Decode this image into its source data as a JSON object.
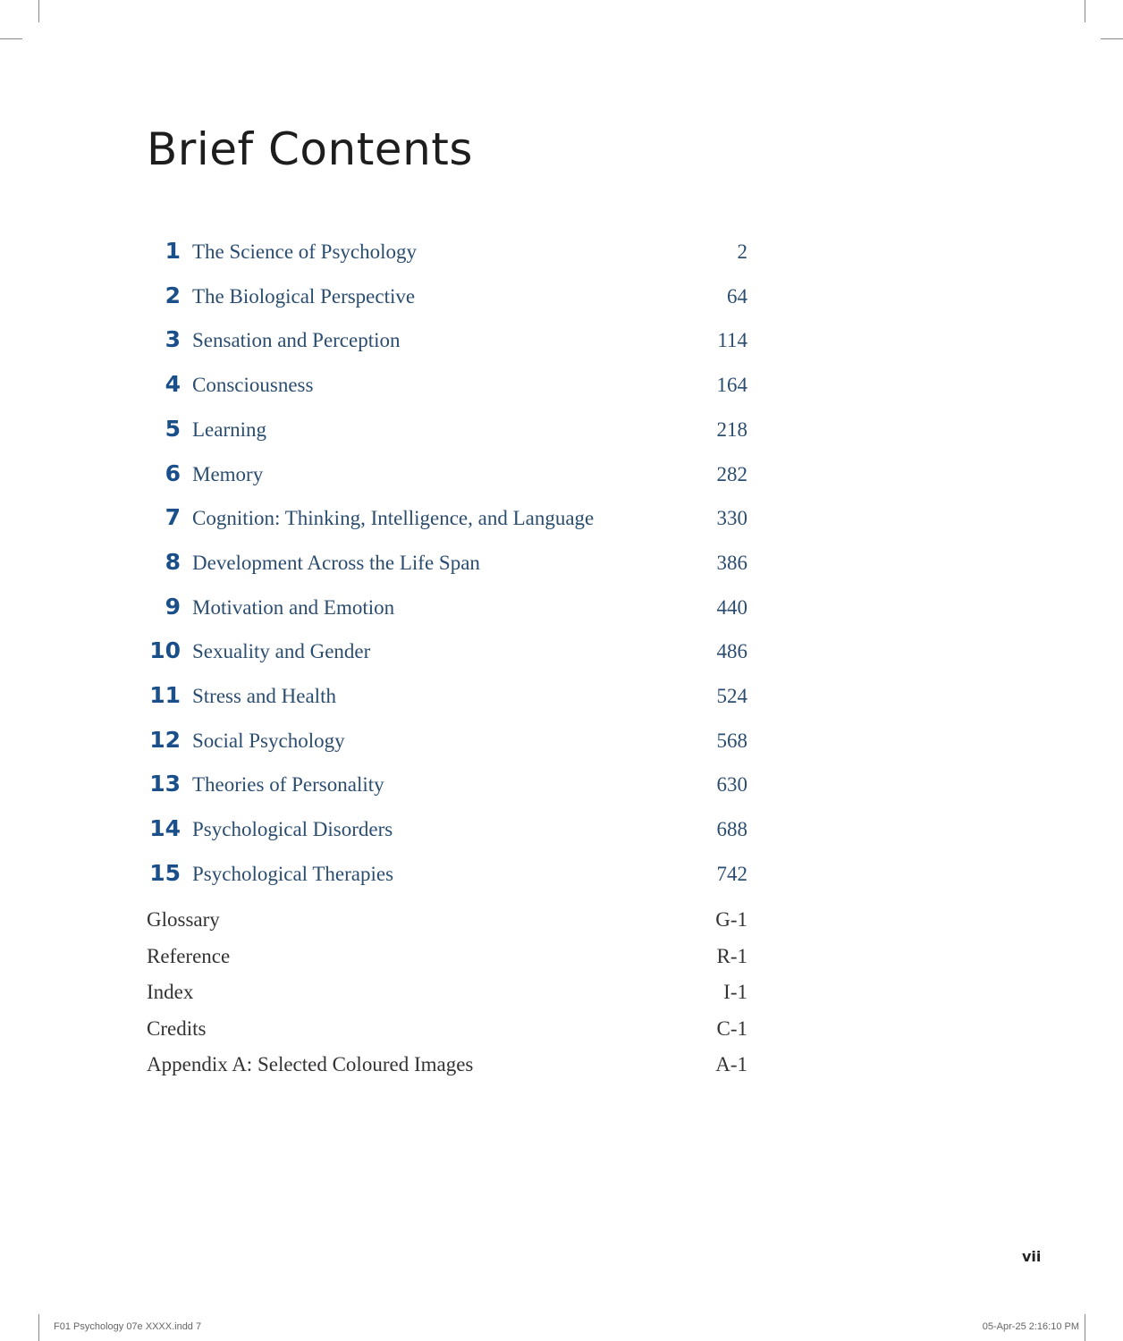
{
  "title": "Brief Contents",
  "chapters": [
    {
      "number": "1",
      "title": "The Science of Psychology",
      "page": "2"
    },
    {
      "number": "2",
      "title": "The Biological Perspective",
      "page": "64"
    },
    {
      "number": "3",
      "title": "Sensation and Perception",
      "page": "114"
    },
    {
      "number": "4",
      "title": "Consciousness",
      "page": "164"
    },
    {
      "number": "5",
      "title": "Learning",
      "page": "218"
    },
    {
      "number": "6",
      "title": "Memory",
      "page": "282"
    },
    {
      "number": "7",
      "title": "Cognition: Thinking, Intelligence, and Language",
      "page": "330"
    },
    {
      "number": "8",
      "title": "Development Across the Life Span",
      "page": "386"
    },
    {
      "number": "9",
      "title": "Motivation and Emotion",
      "page": "440"
    },
    {
      "number": "10",
      "title": "Sexuality and Gender",
      "page": "486"
    },
    {
      "number": "11",
      "title": "Stress and Health",
      "page": "524"
    },
    {
      "number": "12",
      "title": "Social Psychology",
      "page": "568"
    },
    {
      "number": "13",
      "title": "Theories of Personality",
      "page": "630"
    },
    {
      "number": "14",
      "title": "Psychological Disorders",
      "page": "688"
    },
    {
      "number": "15",
      "title": "Psychological Therapies",
      "page": "742"
    }
  ],
  "back_matter": [
    {
      "title": "Glossary",
      "page": "G-1"
    },
    {
      "title": "Reference",
      "page": "R-1"
    },
    {
      "title": "Index",
      "page": "I-1"
    },
    {
      "title": "Credits",
      "page": "C-1"
    },
    {
      "title": "Appendix A: Selected Coloured Images",
      "page": "A-1"
    }
  ],
  "folio": "vii",
  "slug": {
    "file": "F01 Psychology 07e XXXX.indd   7",
    "timestamp": "05-Apr-25   2:16:10 PM"
  },
  "colors": {
    "chapter_number": "#1a4f8a",
    "chapter_title": "#2b4d70"
  }
}
